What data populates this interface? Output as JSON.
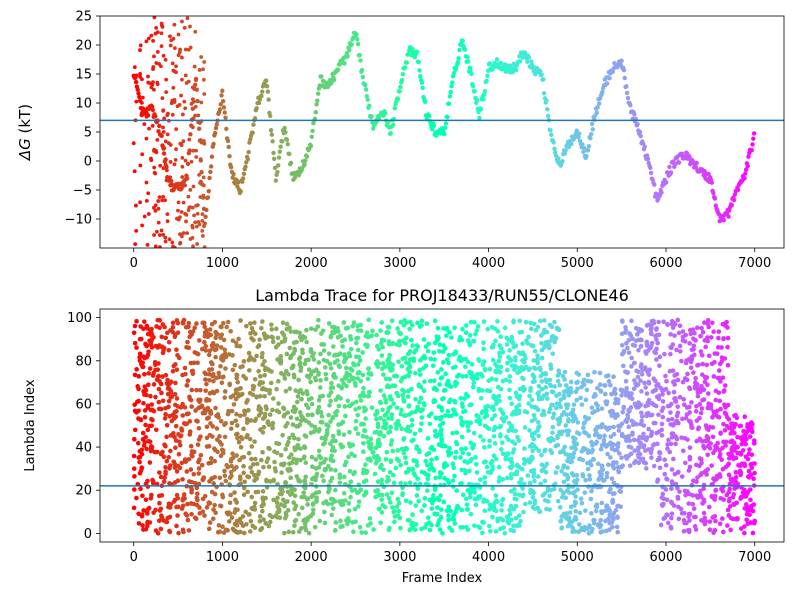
{
  "chart_data": [
    {
      "type": "scatter",
      "ylabel_italic": "ΔG",
      "ylabel_rest": " (kT)",
      "xlim": [
        -380,
        7330
      ],
      "ylim": [
        -15,
        25
      ],
      "xticks": [
        0,
        1000,
        2000,
        3000,
        4000,
        5000,
        6000,
        7000
      ],
      "yticks": [
        -10,
        -5,
        0,
        5,
        10,
        15,
        20,
        25
      ],
      "hline": 7,
      "hline_color": "#1f77b4",
      "colormap": "rainbow (reversed: red at frame 0, violet at end)",
      "grid": false,
      "x": [
        0,
        100,
        200,
        300,
        400,
        500,
        600,
        700,
        800,
        900,
        1000,
        1100,
        1200,
        1300,
        1400,
        1500,
        1600,
        1700,
        1800,
        1900,
        2000,
        2100,
        2200,
        2300,
        2400,
        2500,
        2600,
        2700,
        2800,
        2900,
        3000,
        3100,
        3200,
        3300,
        3400,
        3500,
        3600,
        3700,
        3800,
        3900,
        4000,
        4100,
        4200,
        4300,
        4400,
        4500,
        4600,
        4700,
        4800,
        4900,
        5000,
        5100,
        5200,
        5300,
        5400,
        5500,
        5600,
        5700,
        5800,
        5900,
        6000,
        6100,
        6200,
        6300,
        6400,
        6500,
        6600,
        6700,
        6800,
        6900,
        7000
      ],
      "y": [
        15,
        8,
        9,
        5,
        -4,
        -5,
        -3,
        15,
        -11,
        3,
        12,
        -2,
        -5,
        2,
        10,
        14,
        -3,
        6,
        -3,
        -1,
        3,
        14,
        13,
        16,
        18,
        22,
        13,
        6,
        9,
        5,
        13,
        19,
        18,
        8,
        5,
        5,
        14,
        21,
        15,
        8,
        16,
        17,
        16,
        16,
        19,
        16,
        15,
        5,
        -1,
        3,
        5,
        1,
        8,
        13,
        16,
        17,
        9,
        5,
        0,
        -7,
        -3,
        0,
        1,
        0,
        -2,
        -3,
        -10,
        -9,
        -5,
        -2,
        5
      ],
      "cloud_early": {
        "x_max": 800,
        "y_range": [
          -15,
          25
        ]
      }
    },
    {
      "type": "scatter",
      "title": "Lambda Trace for PROJ18433/RUN55/CLONE46",
      "xlabel": "Frame Index",
      "ylabel": "Lambda Index",
      "xlim": [
        -380,
        7330
      ],
      "ylim": [
        -4,
        104
      ],
      "xticks": [
        0,
        1000,
        2000,
        3000,
        4000,
        5000,
        6000,
        7000
      ],
      "yticks": [
        0,
        20,
        40,
        60,
        80,
        100
      ],
      "hline": 22,
      "hline_color": "#1f77b4",
      "colormap": "rainbow (reversed: red at frame 0, violet at end)",
      "grid": false,
      "y_range": [
        0,
        99
      ],
      "bands": [
        {
          "x": [
            0,
            800
          ],
          "y": [
            0,
            99
          ]
        },
        {
          "x": [
            800,
            1400
          ],
          "y": [
            0,
            99
          ]
        },
        {
          "x": [
            1400,
            2000
          ],
          "y": [
            0,
            99
          ]
        },
        {
          "x": [
            2000,
            2700
          ],
          "y": [
            0,
            99
          ]
        },
        {
          "x": [
            2700,
            3400
          ],
          "y": [
            0,
            99
          ]
        },
        {
          "x": [
            3400,
            4400
          ],
          "y": [
            0,
            99
          ]
        },
        {
          "x": [
            4400,
            4800
          ],
          "y": [
            10,
            99
          ]
        },
        {
          "x": [
            4800,
            5500
          ],
          "y": [
            0,
            75
          ]
        },
        {
          "x": [
            5500,
            5900
          ],
          "y": [
            30,
            99
          ]
        },
        {
          "x": [
            5900,
            6700
          ],
          "y": [
            0,
            99
          ]
        },
        {
          "x": [
            6700,
            7000
          ],
          "y": [
            0,
            55
          ]
        }
      ]
    }
  ]
}
